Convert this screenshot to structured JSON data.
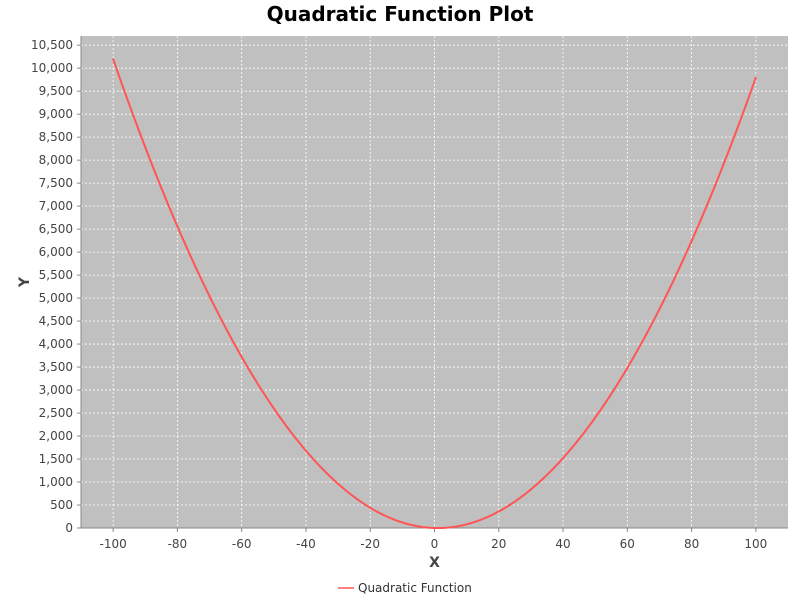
{
  "chart_data": {
    "type": "line",
    "title": "Quadratic Function Plot",
    "xlabel": "X",
    "ylabel": "Y",
    "xlim": [
      -110,
      110
    ],
    "ylim": [
      0,
      10700
    ],
    "xticks": [
      -100,
      -80,
      -60,
      -40,
      -20,
      0,
      20,
      40,
      60,
      80,
      100
    ],
    "xtick_labels": [
      "-100",
      "-80",
      "-60",
      "-40",
      "-20",
      "0",
      "20",
      "40",
      "60",
      "80",
      "100"
    ],
    "yticks": [
      0,
      500,
      1000,
      1500,
      2000,
      2500,
      3000,
      3500,
      4000,
      4500,
      5000,
      5500,
      6000,
      6500,
      7000,
      7500,
      8000,
      8500,
      9000,
      9500,
      10000,
      10500
    ],
    "ytick_labels": [
      "0",
      "500",
      "1,000",
      "1,500",
      "2,000",
      "2,500",
      "3,000",
      "3,500",
      "4,000",
      "4,500",
      "5,000",
      "5,500",
      "6,000",
      "6,500",
      "7,000",
      "7,500",
      "8,000",
      "8,500",
      "9,000",
      "9,500",
      "10,000",
      "10,500"
    ],
    "grid": true,
    "legend": "bottom",
    "colors": {
      "plot_background": "#c0c0c0",
      "grid": "#ffffff",
      "line": "#ff5555"
    },
    "series": [
      {
        "name": "Quadratic Function",
        "x": [
          -100,
          -90,
          -80,
          -70,
          -60,
          -50,
          -40,
          -30,
          -20,
          -10,
          0,
          10,
          20,
          30,
          40,
          50,
          60,
          70,
          80,
          90,
          100
        ],
        "y": [
          10200,
          8280,
          6560,
          5040,
          3720,
          2600,
          1680,
          960,
          440,
          120,
          0,
          80,
          360,
          840,
          1520,
          2400,
          3480,
          4760,
          6240,
          7920,
          9800
        ]
      }
    ]
  }
}
